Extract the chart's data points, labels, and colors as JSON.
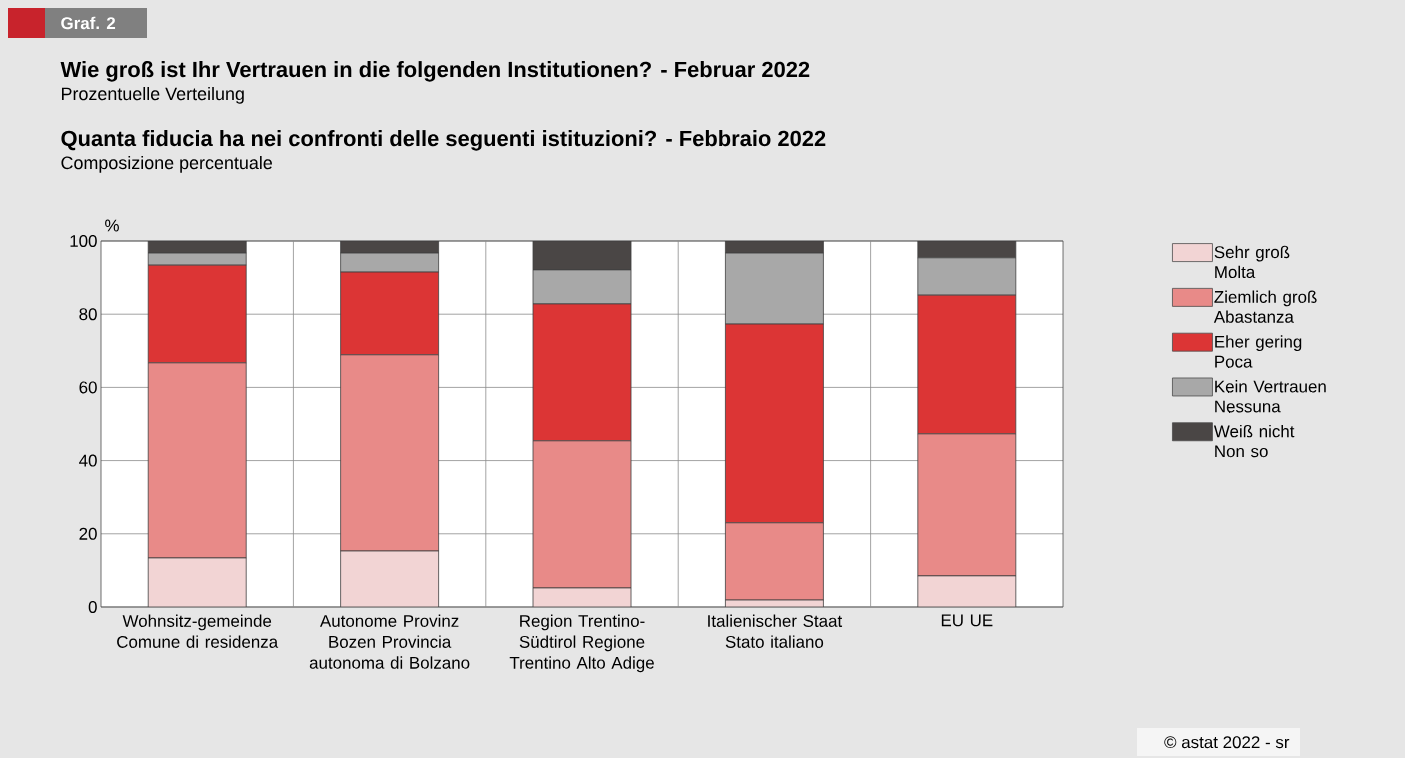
{
  "chart_data": {
    "type": "bar",
    "stacked": true,
    "title": "Wie groß ist Ihr Vertrauen in die folgenden Institutionen? - Februar 2022",
    "subtitle": "Prozentuelle Verteilung",
    "ylabel": "%",
    "annotations": [
      "Graf. 2",
      "**Quanta fiducia ha nei confronti delle seguenti istituzioni? - Febbraio 2022**",
      "Composizione percentuale",
      "© astat 2022 - sr"
    ],
    "categories": [
      "Wohnsitz-gemeinde Comune di residenza",
      "Autonome Provinz Bozen Provincia autonoma di Bolzano",
      "Region Trentino-Südtirol Regione Trentino Alto Adige",
      "Italienischer Staat Stato italiano",
      "EU UE"
    ],
    "series": [
      {
        "name": "Sehr groß Molta",
        "color": "#f2d4d4",
        "values": [
          13.4,
          15.3,
          5.2,
          1.9,
          8.5
        ]
      },
      {
        "name": "Ziemlich groß Abastanza",
        "color": "#e88a88",
        "values": [
          53.3,
          53.6,
          40.2,
          21.1,
          38.8
        ]
      },
      {
        "name": "Eher gering Poca",
        "color": "#dc3535",
        "values": [
          26.7,
          22.6,
          37.4,
          54.3,
          37.9
        ]
      },
      {
        "name": "Kein Vertrauen Nessuna",
        "color": "#a8a8a8",
        "values": [
          3.3,
          5.2,
          9.3,
          19.4,
          10.2
        ]
      },
      {
        "name": "Weiß nicht Non so",
        "color": "#4a4645",
        "values": [
          3.3,
          3.3,
          7.9,
          3.3,
          4.6
        ]
      }
    ],
    "ylim": [
      0,
      100
    ],
    "yticks": [
      0,
      20,
      40,
      60,
      80,
      100
    ],
    "grid": true,
    "legend": "right"
  }
}
